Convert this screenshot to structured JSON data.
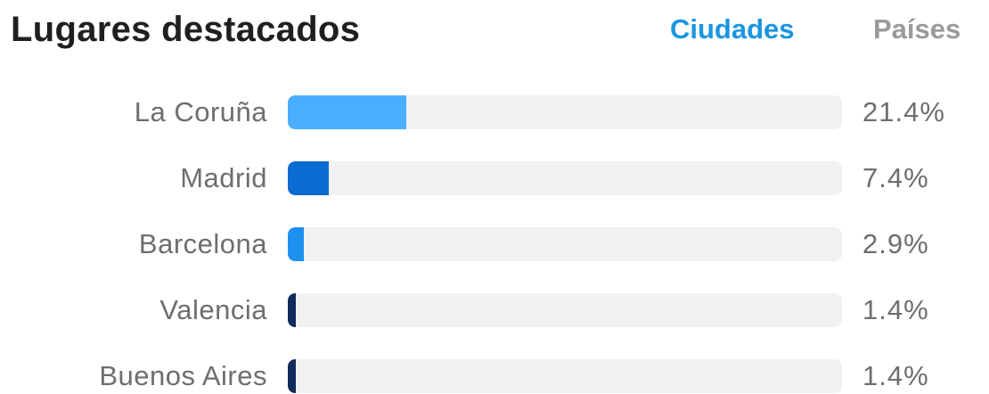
{
  "header": {
    "title": "Lugares destacados",
    "tabs": [
      {
        "label": "Ciudades",
        "active": true,
        "color": "#1a95e0"
      },
      {
        "label": "Países",
        "active": false,
        "color": "#9a9a9a"
      }
    ]
  },
  "colors": {
    "track": "#f1f1f1",
    "label": "#6e6e6e"
  },
  "places": [
    {
      "label": "La Coruña",
      "value": "21.4%",
      "fraction": 0.214,
      "color": "#4aaeff"
    },
    {
      "label": "Madrid",
      "value": "7.4%",
      "fraction": 0.074,
      "color": "#0a6bd0"
    },
    {
      "label": "Barcelona",
      "value": "2.9%",
      "fraction": 0.029,
      "color": "#1e90f0"
    },
    {
      "label": "Valencia",
      "value": "1.4%",
      "fraction": 0.014,
      "color": "#0f2c5a"
    },
    {
      "label": "Buenos Aires",
      "value": "1.4%",
      "fraction": 0.014,
      "color": "#0f2c5a"
    }
  ]
}
